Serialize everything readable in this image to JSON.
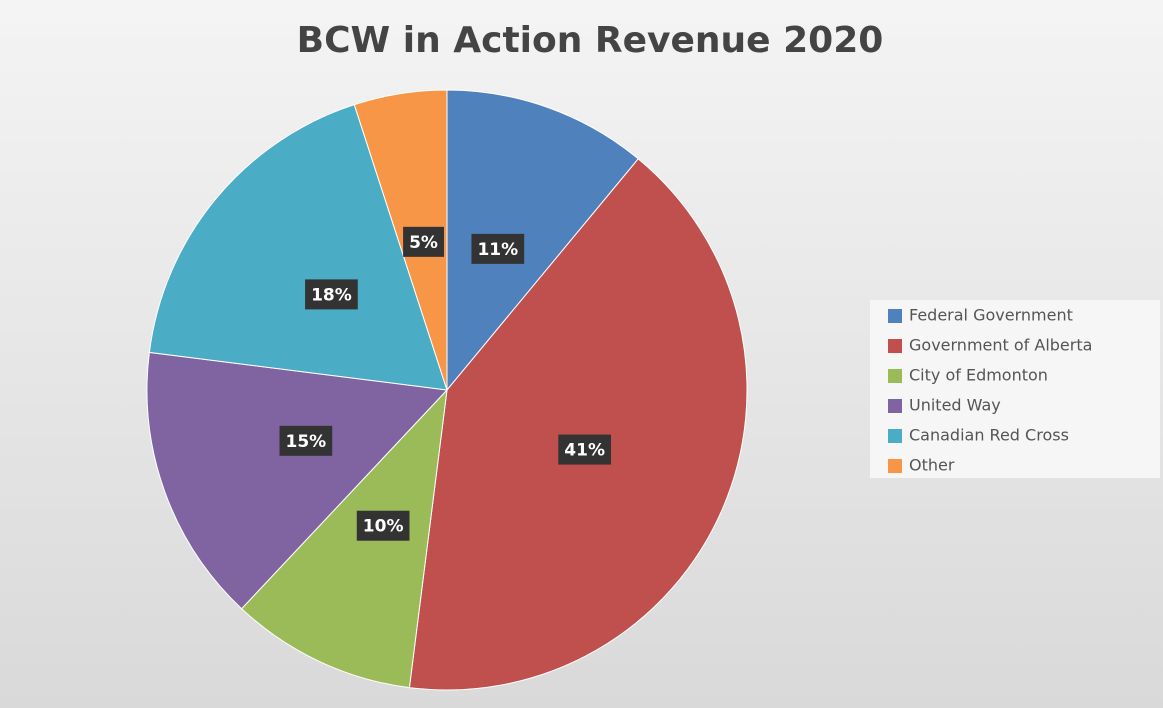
{
  "chart_data": {
    "type": "pie",
    "title": "BCW in Action Revenue 2020",
    "categories": [
      "Federal Government",
      "Government of Alberta",
      "City of Edmonton",
      "United Way",
      "Canadian Red Cross",
      "Other"
    ],
    "values": [
      11,
      41,
      10,
      15,
      18,
      5
    ],
    "value_labels": [
      "11%",
      "41%",
      "10%",
      "15%",
      "18%",
      "5%"
    ],
    "colors": [
      "#4f81bd",
      "#c0504d",
      "#9bbb59",
      "#8064a2",
      "#4bacc6",
      "#f79646"
    ],
    "legend": "right"
  }
}
